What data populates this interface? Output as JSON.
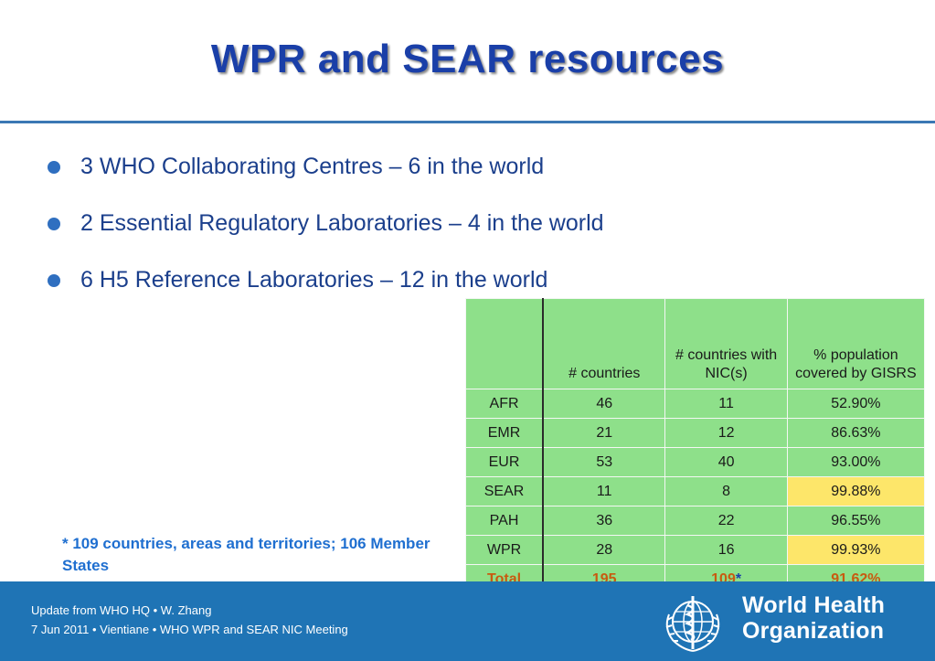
{
  "slide": {
    "title": "WPR and SEAR resources",
    "bullets": [
      "3 WHO Collaborating Centres – 6 in the world",
      "2 Essential Regulatory Laboratories – 4 in the world",
      "6 H5 Reference Laboratories – 12 in the world"
    ]
  },
  "table": {
    "headers": [
      "",
      "# countries",
      "# countries with NIC(s)",
      "% population covered by GISRS"
    ],
    "rows": [
      {
        "region": "AFR",
        "countries": "46",
        "nic": "11",
        "pct": "52.90%"
      },
      {
        "region": "EMR",
        "countries": "21",
        "nic": "12",
        "pct": "86.63%"
      },
      {
        "region": "EUR",
        "countries": "53",
        "nic": "40",
        "pct": "93.00%"
      },
      {
        "region": "SEAR",
        "countries": "11",
        "nic": "8",
        "pct": "99.88%"
      },
      {
        "region": "PAH",
        "countries": "36",
        "nic": "22",
        "pct": "96.55%"
      },
      {
        "region": "WPR",
        "countries": "28",
        "nic": "16",
        "pct": "99.93%"
      }
    ],
    "total": {
      "region": "Total",
      "countries": "195",
      "nic": "109",
      "nic_mark": "*",
      "pct": "91.62%"
    },
    "highlight_color": "#fde66a",
    "cell_color": "#8ee08a"
  },
  "footnote": "* 109 countries, areas and territories; 106 Member States",
  "footer": {
    "line1": "Update from WHO HQ • W. Zhang",
    "line2": "7 Jun 2011 • Vientiane • WHO WPR and SEAR NIC Meeting",
    "org_line1": "World Health",
    "org_line2": "Organization",
    "emblem_icon": "who-emblem-icon",
    "bar_color": "#1f74b5"
  }
}
